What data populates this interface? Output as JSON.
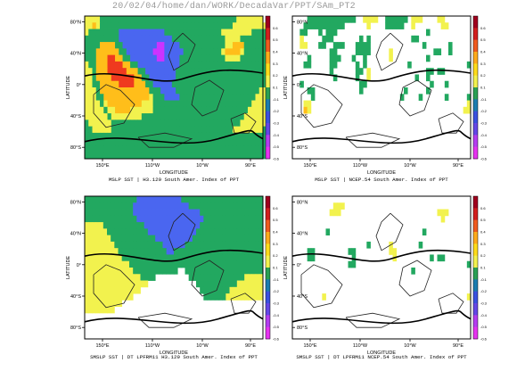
{
  "header": "20/02/04/home/dan/WORK/DecadaVar/PPT/SAm_PT2",
  "chart_data": [
    {
      "type": "heatmap",
      "title": "MSLP SST | H3.129 South Amer. Index of PPT",
      "xlabel": "LONGITUDE",
      "ylabel": "LATITUDE",
      "xticks": [
        "150°E",
        "110°W",
        "10°W",
        "90°E"
      ],
      "yticks": [
        "80°N",
        "40°N",
        "0°",
        "40°S",
        "80°S"
      ],
      "colorbar": [
        "0.6",
        "0.5",
        "0.4",
        "0.3",
        "0.2",
        "0.1",
        "-0.1",
        "-0.2",
        "-0.3",
        "-0.4",
        "-0.5",
        "-0.6"
      ],
      "grid": [
        "YYYYGGGGGGGGGGGGGGGGGGGGGGGGGGGGGGGGGGGGYYYYYYY",
        "YYOYGGGGGGGGGGGGGGGGGGGGGGGGGGGGGGGGGGGYYYYYYYYY",
        "YGGGGGGGGBBBBBBBBBBBBGGGGGGGGGGGGGGGYYYYYYYYGGGG",
        "GGGGGGGGGBBBBBBBBBBBBBBGGGGGGGGGGGGGGYYYYGGGGGGG",
        "GGGGOOOOGGBBBBBBBBBPPBBBBGGGGGGGGGGGGYYOOOGGGGGG",
        "GGGOOOOOOGGBBBBBBBPPPBBBBBGGGGGGGGGGYOOOOYGGGGGG",
        "GGGOOORROOGGBBBBBBBPPBBBBGGGGGGGGGGGGYYYYGGGGGGG",
        "YGGOOORRRROOGGBBBBBBBBBBBGGGGGGGGGGGGGGGGGGGGGGG",
        "YYGOOORRRRROOOGGBBBBBBBBGGGGGGGGGGGGGGGGGGGGGGGG",
        "YYGOOOORRRRRROOGGBBBBBBBGGGGGGGGGGGGGGGGGGGGGGGG",
        "YYGGOOOOORRRROOOGGBBBBBGGGGGGGGGGGGGGGGGGGGGGGGG",
        "YYYGOOOOOOOOOOOOOGGGBBBBGGGGGGGGGGGGGGGGGGGGGGYY",
        "YYYGGOOOOOOOOOOOOYGGGBBBBGGGGGGGGGGGGGGGGGGGGYYY",
        "YYYYGYOOOOOOOOOYYYGGGGGGGGGGGGGGGGGGGGGGGGGGYYYY",
        "YYYYYGYYOOOOYYYYYYGGGGGGGGGGGGGGGGGGGGGGGGGYYYYY",
        "YYYYYYGYYYYYYYYGGGGGGGGGGGGGGGGGGGGGGGGGGGYYYYYY",
        "GYYYYYYGGGGGGGGGGGGGGGGGGGGGGGGGGGGGGGGGGYYYYYYY",
        "GGYYYYYGGGGGGGGGGGGGGGGGGGGGGGGGGGGGGGGYYYYYYYYG",
        "GGGGGGGGGGGGGGGGGGGGGGGGGGGGGGGGGGGGGGGGGGGGGGGG",
        "GGGGGGGGGGGGGGGGGGGGGGGGGGGGGGGGGGGGGGGGGGGGGGGG",
        "GGGGGGGGGGGGGGGGGGGGGGGGGGGGGGGGGGGGGGGGGGGGGGGG",
        "GGGGGGGGGGGGGGGGGGGGGGGGGGGGGGGGGGGGGGGGGGGGGGGG"
      ]
    },
    {
      "type": "heatmap",
      "title": "MSLP SST | NCEP.54 South Amer. Index of PPT",
      "xlabel": "LONGITUDE",
      "ylabel": "LATITUDE",
      "xticks": [
        "150°E",
        "110°W",
        "10°W",
        "90°E"
      ],
      "yticks": [
        "80°N",
        "40°N",
        "0°",
        "40°S",
        "80°S"
      ],
      "colorbar": [
        "0.6",
        "0.5",
        "0.4",
        "0.3",
        "0.2",
        "0.1",
        "-0.1",
        "-0.2",
        "-0.3",
        "-0.4",
        "-0.5",
        "-0.6"
      ],
      "grid": [
        "....GGGGGGGGGGGGG..YYYY..GGGGGG.YYY....YY.......",
        "...GGGGGGGGGGG......Y....GGGGG..Y.......YY......",
        "..GG...G.GGG........................G...........",
        "..Y.....GGG.......G.G...........GG..............",
        "..YY...GG..GGG...GGGG..............G......G.....",
        "..........GG.....GGGG.....Y...........GG..G.....",
        "....G.....GGG...G..G......Y.........G...........",
        "...GG.....GG.....G.G...........G...............G",
        "..........G......GG.Y...............GG.GG.......",
        "...........G.....G..Y............G..G...........",
        "..G...............GG.................G...G......",
        "....GG............G...........G.....G...........",
        ".....G.......................G....G......G.....G",
        "...YY..........................................Y",
        "...OY.........................................YY",
        "................................................",
        "................................................",
        "................................................",
        "................................................",
        "................................................",
        "................................................",
        "................................................"
      ]
    },
    {
      "type": "heatmap",
      "title": "SMSLP SST | DT LPFRM11 H3.129 South Amer. Index of PPT",
      "xlabel": "LONGITUDE",
      "ylabel": "LATITUDE",
      "xticks": [
        "150°E",
        "110°W",
        "10°W",
        "90°E"
      ],
      "yticks": [
        "80°N",
        "40°N",
        "0°",
        "40°S",
        "80°S"
      ],
      "colorbar": [
        "0.6",
        "0.5",
        "0.4",
        "0.3",
        "0.2",
        "0.1",
        "-0.1",
        "-0.2",
        "-0.3",
        "-0.4",
        "-0.5",
        "-0.6"
      ],
      "grid": [
        "GGGGGGGGGGGGGGBBBBBBBBBBBBGGGGGGGGGGGGGGGGGGGGGG",
        "GGGGGGGGGGGGGBBBBBBBBBBBBBBBGGGGGGGGGGGGGGGGGGGG",
        "GGGGGGGGGGGGGBBBBBBBBBBBBBBBBBBGGGGGGGGGGGGGGGGG",
        "GGGGGGGGGGGGGGBBBBBBBBBBBBBBBBBBGGGGGGGGGGGGGGGG",
        "YYYYYGGGGGGGGGGGBBBBBBBBBBBBBBBGGGGGGGGGGGGGGGGG",
        "YYYYYYGGGGGGGGGGGBBBBBBBBBBBBBGGGGGGGGGGGGGGGGGG",
        "YYYYYYYGGGGGGGGGGGGBBBBBBBBBBGGGGGGGGGGGGGGGGGGG",
        "YYYYYYYYGGGGGGGGGGGGGBBBBBBGGGGGGGGGGGGGGGGGGGGG",
        "YYYYYYYYYGGGGGGGGGGGGGBBGGGGGGGGGGGGGGGGGGGGGGGG",
        "YYYYYYYYYYGGGGGGGGGGGGGGGGGGGGGGGGGGGGGGGGGGGGGG",
        "YYYYYYYYYYYYGGGGGGGGGGGGGGGGGGGGGGGGGGGGGGGGGGGG",
        "YYYYYYYYYYYYYGGGGGGGGGGGG..GGGGGGGGGGGGGGGGGGGGG",
        "YYYYYYYYYYYYYYYGGGG.........GGGGGGGGGGGGGGGYYYYY",
        "YYYYYYYYYYYYYYYYY.............GGGGGGGGGGGYYYYYYY",
        "YYYYYYYYYYYYYYY................GGGGGGGGYYYYYYYYY",
        "YYYYYYYYYYYYY...................GGGGGGYYYYYYYYYY",
        "YYYYYYYYYY......................................",
        "YYYYYYYY........................................",
        "................................................",
        "................................................",
        "................................................",
        "................................................"
      ]
    },
    {
      "type": "heatmap",
      "title": "SMSLP SST | DT LPFRM11 NCEP.54 South Amer. Index of PPT",
      "xlabel": "LONGITUDE",
      "ylabel": "LATITUDE",
      "xticks": [
        "150°E",
        "110°W",
        "10°W",
        "90°E"
      ],
      "yticks": [
        "80°N",
        "40°N",
        "0°",
        "40°S",
        "80°S"
      ],
      "colorbar": [
        "0.6",
        "0.5",
        "0.4",
        "0.3",
        "0.2",
        "0.1",
        "-0.1",
        "-0.2",
        "-0.3",
        "-0.4",
        "-0.5",
        "-0.6"
      ],
      "grid": [
        "................................................",
        "...........YYY..................................",
        "..........YYY..........................YYY......",
        "........................................Y.......",
        "................................................",
        ".........G.........................G............",
        "................................................",
        "....................G.....Y.......G.............",
        "....GG.........GG.........YY....................",
        "....GG..........G..........Y.........G.GG.......",
        "...............GG..............................G",
        "................................G...............",
        "................................................",
        "................................................",
        "................................................",
        "........Y......................................Y",
        "................................................",
        "................................................",
        "................................................",
        "................................................",
        "................................................",
        "................................................"
      ]
    }
  ],
  "colors": {
    "P": "#cc33ff",
    "B": "#4a66f0",
    "G": "#22a860",
    "Y": "#f2f24e",
    "O": "#ffbe1a",
    "R": "#ef3a1f",
    "colorbar": [
      "#a0001e",
      "#d21e1e",
      "#f05a1e",
      "#ffaa1a",
      "#ffdc1a",
      "#f2f24e",
      "#2aa054",
      "#1a7cb0",
      "#3a50e0",
      "#6446e6",
      "#b43cf0",
      "#e632f0"
    ]
  }
}
